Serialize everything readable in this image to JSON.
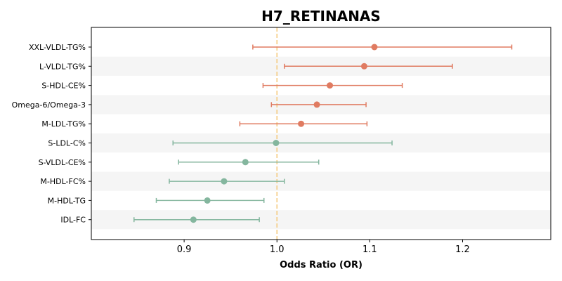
{
  "chart_data": {
    "type": "forest",
    "title": "H7_RETINANAS",
    "xlabel": "Odds Ratio (OR)",
    "xlim": [
      0.8,
      1.295
    ],
    "xticks": [
      0.9,
      1.0,
      1.1,
      1.2
    ],
    "xtick_labels": [
      "0.9",
      "1.0",
      "1.1",
      "1.2"
    ],
    "reference_line": 1.0,
    "reference_line_style": "dashed",
    "reference_line_color": "#f5c97a",
    "alternating_row_shading": true,
    "shade_color": "#f5f5f5",
    "colors": {
      "positive": "#e07b61",
      "negative": "#84b69e"
    },
    "categories": [
      "XXL-VLDL-TG%",
      "L-VLDL-TG%",
      "S-HDL-CE%",
      "Omega-6/Omega-3",
      "M-LDL-TG%",
      "S-LDL-C%",
      "S-VLDL-CE%",
      "M-HDL-FC%",
      "M-HDL-TG",
      "IDL-FC"
    ],
    "or": [
      1.105,
      1.094,
      1.057,
      1.043,
      1.026,
      0.999,
      0.966,
      0.943,
      0.925,
      0.91
    ],
    "ci_lower": [
      0.974,
      1.008,
      0.985,
      0.994,
      0.96,
      0.888,
      0.894,
      0.884,
      0.87,
      0.846
    ],
    "ci_upper": [
      1.253,
      1.189,
      1.135,
      1.096,
      1.097,
      1.124,
      1.045,
      1.008,
      0.986,
      0.981
    ]
  }
}
